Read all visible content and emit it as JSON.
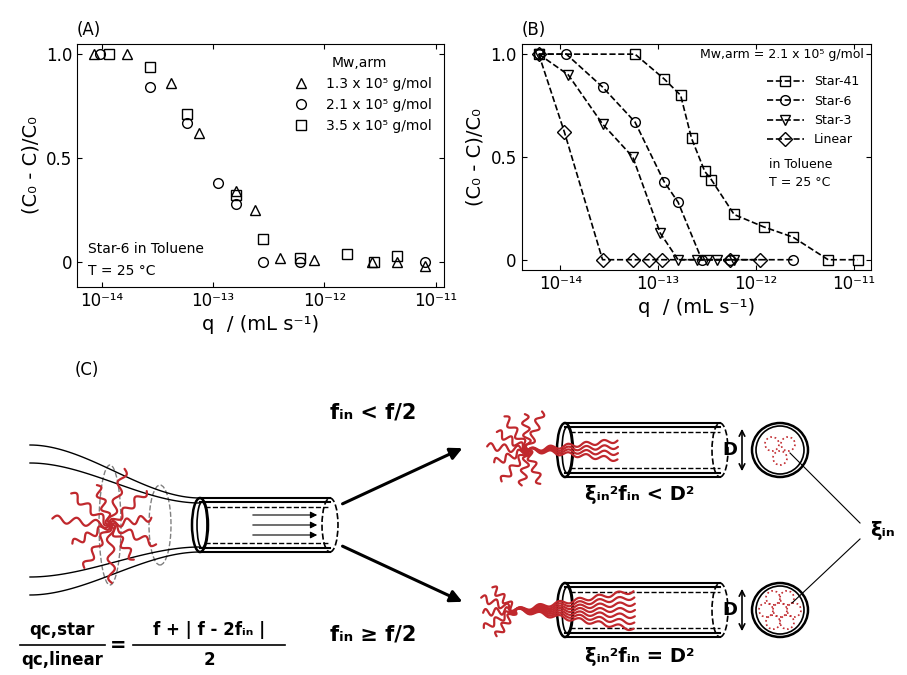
{
  "chart_data": [
    {
      "type": "scatter",
      "panel_label": "(A)",
      "x_label": "q  / (mL s⁻¹)",
      "y_label": "(C₀ - C)/C₀",
      "log": "x",
      "xlim": [
        6e-15,
        1.2e-11
      ],
      "xticks": [
        {
          "value": 1e-14,
          "label": "10⁻¹⁴"
        },
        {
          "value": 1e-13,
          "label": "10⁻¹³"
        },
        {
          "value": 1e-12,
          "label": "10⁻¹²"
        },
        {
          "value": 1e-11,
          "label": "10⁻¹¹"
        }
      ],
      "ylim": [
        -0.12,
        1.05
      ],
      "yticks": [
        0,
        0.5,
        {
          "value": 1,
          "label": "1.0"
        }
      ],
      "legend": "upper right",
      "legend_title": "Mw,arm",
      "annotations": [
        "Star-6 in Toluene",
        "T = 25 °C"
      ],
      "series": [
        {
          "name": "1.3 x 10⁵ g/mol",
          "marker": "triangle",
          "color": "#000000",
          "x": [
            8.6e-15,
            1.7e-14,
            4.2e-14,
            7.5e-14,
            1.6e-13,
            2.4e-13,
            4e-13,
            8e-13,
            2.7e-12,
            4.5e-12,
            8e-12
          ],
          "values": [
            1.0,
            1.0,
            0.86,
            0.62,
            0.34,
            0.25,
            0.02,
            0.01,
            0.0,
            0.0,
            -0.02
          ]
        },
        {
          "name": "2.1 x 10⁵ g/mol",
          "marker": "circle",
          "color": "#000000",
          "x": [
            9.6e-15,
            2.7e-14,
            5.8e-14,
            1.1e-13,
            1.6e-13,
            2.8e-13,
            6e-13,
            8e-12
          ],
          "values": [
            1.0,
            0.84,
            0.67,
            0.38,
            0.28,
            0.0,
            0.0,
            0.0
          ]
        },
        {
          "name": "3.5 x 10⁵ g/mol",
          "marker": "square",
          "color": "#000000",
          "x": [
            1.15e-14,
            2.7e-14,
            5.8e-14,
            1.6e-13,
            2.8e-13,
            6e-13,
            1.6e-12,
            2.8e-12,
            4.5e-12
          ],
          "values": [
            1.0,
            0.94,
            0.71,
            0.32,
            0.11,
            0.02,
            0.04,
            0.0,
            0.03
          ]
        }
      ]
    },
    {
      "type": "line",
      "panel_label": "(B)",
      "x_label": "q  / (mL s⁻¹)",
      "y_label": "(C₀ - C)/C₀",
      "log": "x",
      "xlim": [
        4e-15,
        1.5e-11
      ],
      "xticks": [
        {
          "value": 1e-14,
          "label": "10⁻¹⁴"
        },
        {
          "value": 1e-13,
          "label": "10⁻¹³"
        },
        {
          "value": 1e-12,
          "label": "10⁻¹²"
        },
        {
          "value": 1e-11,
          "label": "10⁻¹¹"
        }
      ],
      "ylim": [
        -0.05,
        1.05
      ],
      "yticks": [
        0,
        0.5,
        {
          "value": 1,
          "label": "1.0"
        }
      ],
      "legend": "upper right",
      "legend_title": "Mw,arm = 2.1 x 10⁵ g/mol",
      "annotations": [
        "in Toluene",
        "T = 25 °C"
      ],
      "series": [
        {
          "name": "Star-41",
          "marker": "square",
          "line_style": "dashed",
          "color": "#000000",
          "x": [
            6e-15,
            5.8e-14,
            1.15e-13,
            1.7e-13,
            2.2e-13,
            3e-13,
            3.5e-13,
            6e-13,
            1.2e-12,
            2.4e-12,
            5.5e-12,
            1.1e-11
          ],
          "values": [
            1.0,
            1.0,
            0.88,
            0.8,
            0.59,
            0.43,
            0.39,
            0.22,
            0.16,
            0.11,
            0.0,
            0.0
          ]
        },
        {
          "name": "Star-6",
          "marker": "circle",
          "line_style": "dashed",
          "color": "#000000",
          "x": [
            6e-15,
            1.15e-14,
            2.7e-14,
            5.8e-14,
            1.15e-13,
            1.6e-13,
            2.8e-13,
            5.5e-13,
            2.4e-12
          ],
          "values": [
            1.0,
            1.0,
            0.84,
            0.67,
            0.38,
            0.28,
            0.0,
            0.0,
            0.0
          ]
        },
        {
          "name": "Star-3",
          "marker": "triangle_down",
          "line_style": "dashed",
          "color": "#000000",
          "x": [
            6e-15,
            1.2e-14,
            2.7e-14,
            5.5e-14,
            1.05e-13,
            1.6e-13,
            2.5e-13,
            3.2e-13,
            4e-13,
            6e-13
          ],
          "values": [
            1.0,
            0.9,
            0.66,
            0.5,
            0.13,
            0.0,
            0.0,
            0.0,
            0.0,
            0.0
          ]
        },
        {
          "name": "Linear",
          "marker": "diamond",
          "line_style": "dashed",
          "color": "#000000",
          "x": [
            6e-15,
            1.1e-14,
            2.7e-14,
            5.5e-14,
            8e-14,
            1.1e-13,
            5.5e-13,
            1.1e-12
          ],
          "values": [
            1.0,
            0.62,
            0.0,
            0.0,
            0.0,
            0.0,
            0.0,
            0.0
          ]
        }
      ]
    }
  ],
  "diagram": {
    "panel_label": "(C)",
    "branches": [
      {
        "condition": "fᵢₙ < f/2",
        "packing": "ξᵢₙ²fᵢₙ < D²"
      },
      {
        "condition": "fᵢₙ ≥ f/2",
        "packing": "ξᵢₙ²fᵢₙ = D²"
      }
    ],
    "tube_diameter_label": "D",
    "blob_label": "ξᵢₙ",
    "formula": {
      "lhs_numerator": "qc,star",
      "lhs_denominator": "qc,linear",
      "relation": "=",
      "rhs_numerator": "f + | f - 2fᵢₙ |",
      "rhs_denominator": "2"
    }
  }
}
